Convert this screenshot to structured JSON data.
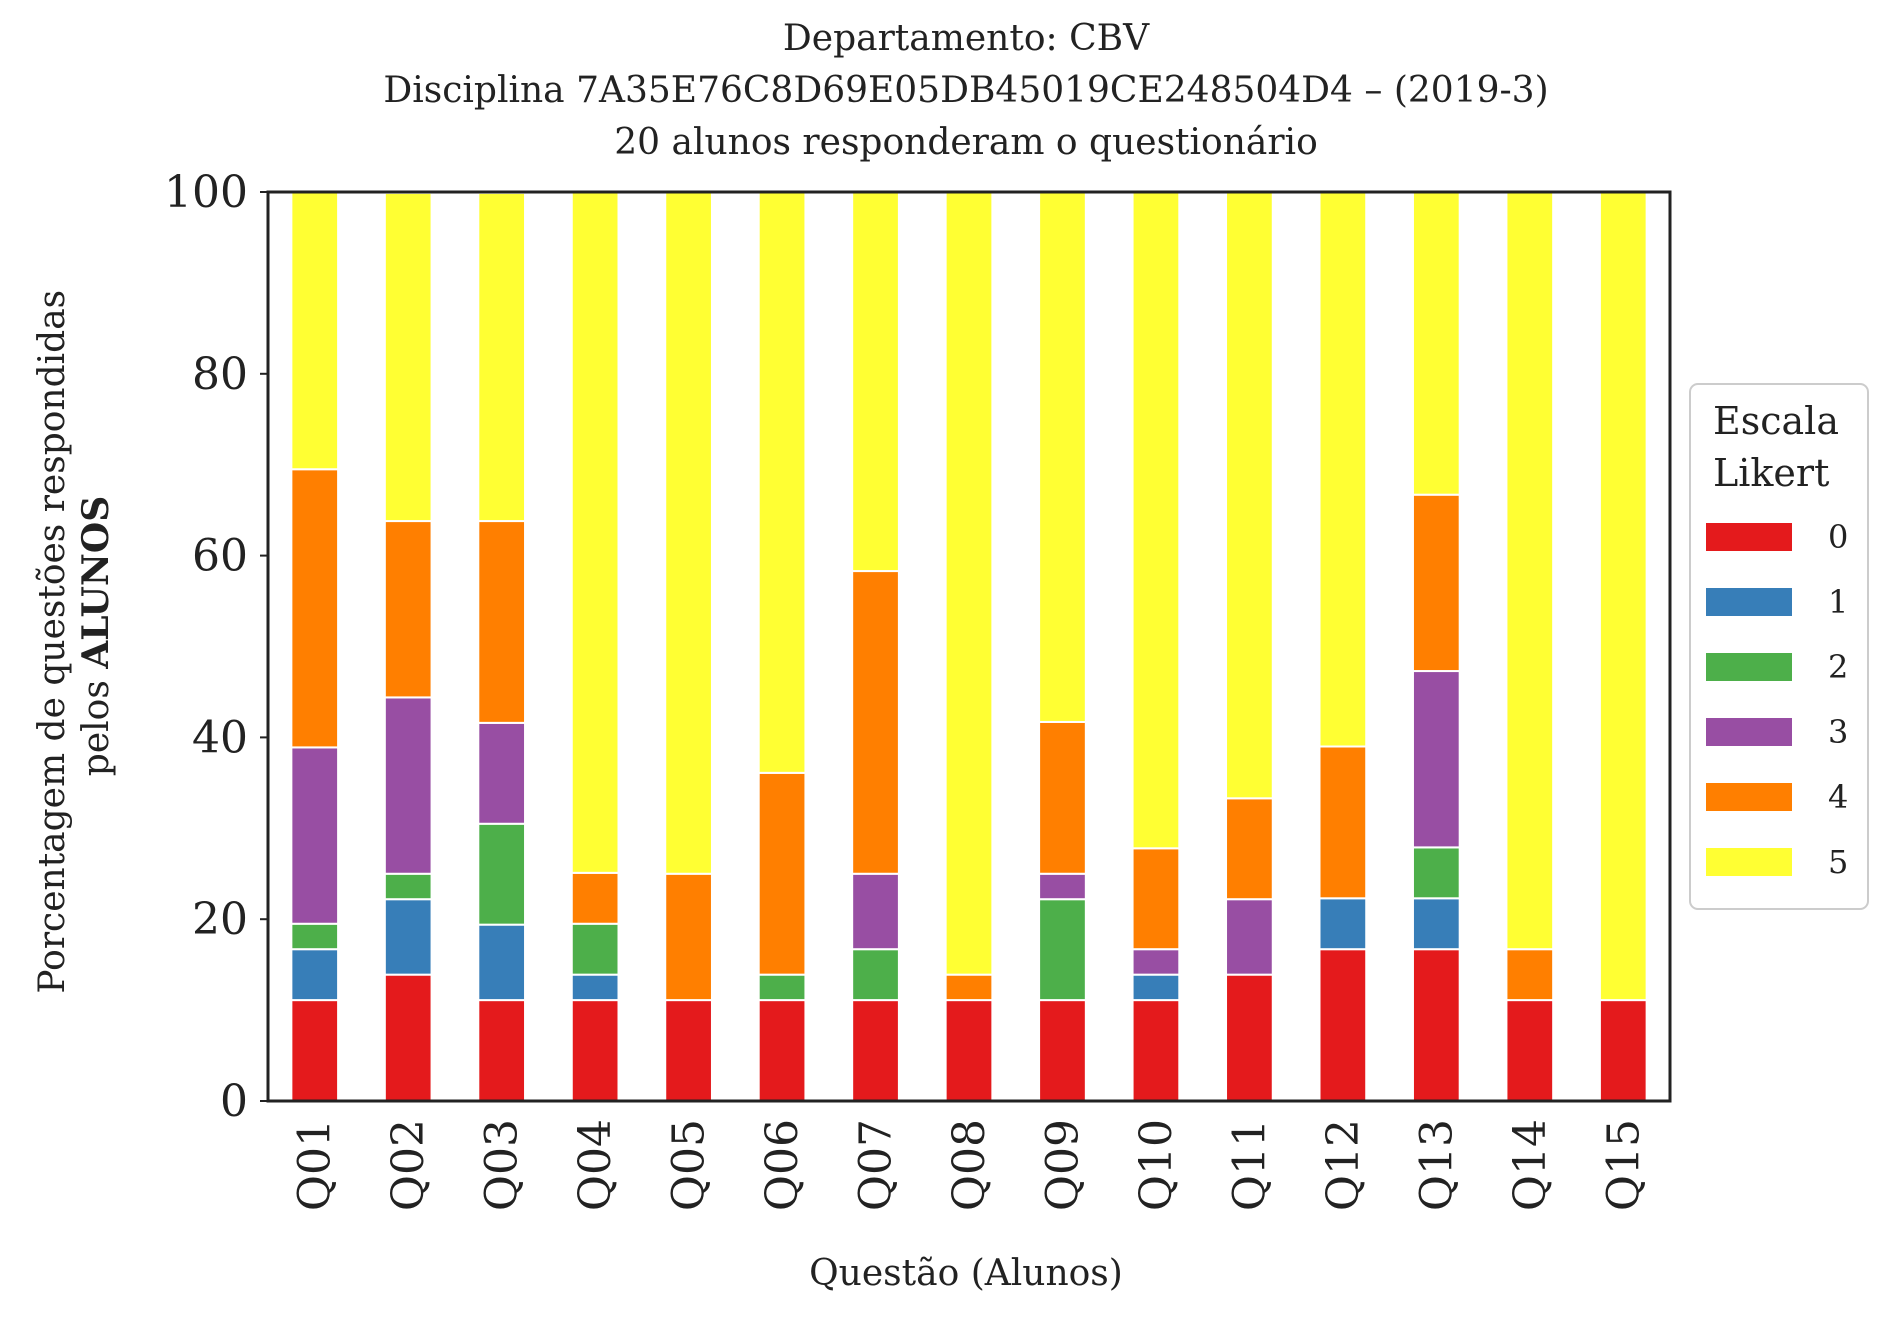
{
  "chart_data": {
    "type": "bar",
    "stacked": true,
    "title": [
      "Departamento: CBV",
      "Disciplina 7A35E76C8D69E05DB45019CE248504D4 – (2019-3)",
      "20 alunos responderam o questionário"
    ],
    "xlabel": "Questão (Alunos)",
    "ylabel": {
      "line1": "Porcentagem de questões respondidas",
      "line2_prefix": "pelos ",
      "line2_bold": "ALUNOS"
    },
    "ylim": [
      0,
      100
    ],
    "yticks": [
      "0",
      "20",
      "40",
      "60",
      "80",
      "100"
    ],
    "grid": false,
    "legend": {
      "title": [
        "Escala",
        "Likert"
      ],
      "placement": "right"
    },
    "categories": [
      "Q01",
      "Q02",
      "Q03",
      "Q04",
      "Q05",
      "Q06",
      "Q07",
      "Q08",
      "Q09",
      "Q10",
      "Q11",
      "Q12",
      "Q13",
      "Q14",
      "Q15"
    ],
    "series": [
      {
        "name": "0",
        "color": "#e41a1c",
        "values": [
          11.1,
          13.9,
          11.1,
          11.1,
          11.1,
          11.1,
          11.1,
          11.1,
          11.1,
          11.1,
          13.9,
          16.7,
          16.7,
          11.1,
          11.1
        ]
      },
      {
        "name": "1",
        "color": "#377eb8",
        "values": [
          5.6,
          8.3,
          8.3,
          2.8,
          0,
          0,
          0,
          0,
          0,
          2.8,
          0,
          5.6,
          5.6,
          0,
          0
        ]
      },
      {
        "name": "2",
        "color": "#4daf4a",
        "values": [
          2.8,
          2.8,
          11.1,
          5.6,
          0,
          2.8,
          5.6,
          0,
          11.1,
          0,
          0,
          0,
          5.6,
          0,
          0
        ]
      },
      {
        "name": "3",
        "color": "#984ea3",
        "values": [
          19.4,
          19.4,
          11.1,
          0,
          0,
          0,
          8.3,
          0,
          2.8,
          2.8,
          8.3,
          0,
          19.4,
          0,
          0
        ]
      },
      {
        "name": "4",
        "color": "#ff7f00",
        "values": [
          30.6,
          19.4,
          22.2,
          5.6,
          13.9,
          22.2,
          33.3,
          2.8,
          16.7,
          11.1,
          11.1,
          16.7,
          19.4,
          5.6,
          0
        ]
      },
      {
        "name": "5",
        "color": "#ffff33",
        "values": [
          30.6,
          36.1,
          36.1,
          75.0,
          75.0,
          63.9,
          41.7,
          86.1,
          58.3,
          72.2,
          66.7,
          61.1,
          33.3,
          83.3,
          88.9
        ]
      }
    ]
  }
}
